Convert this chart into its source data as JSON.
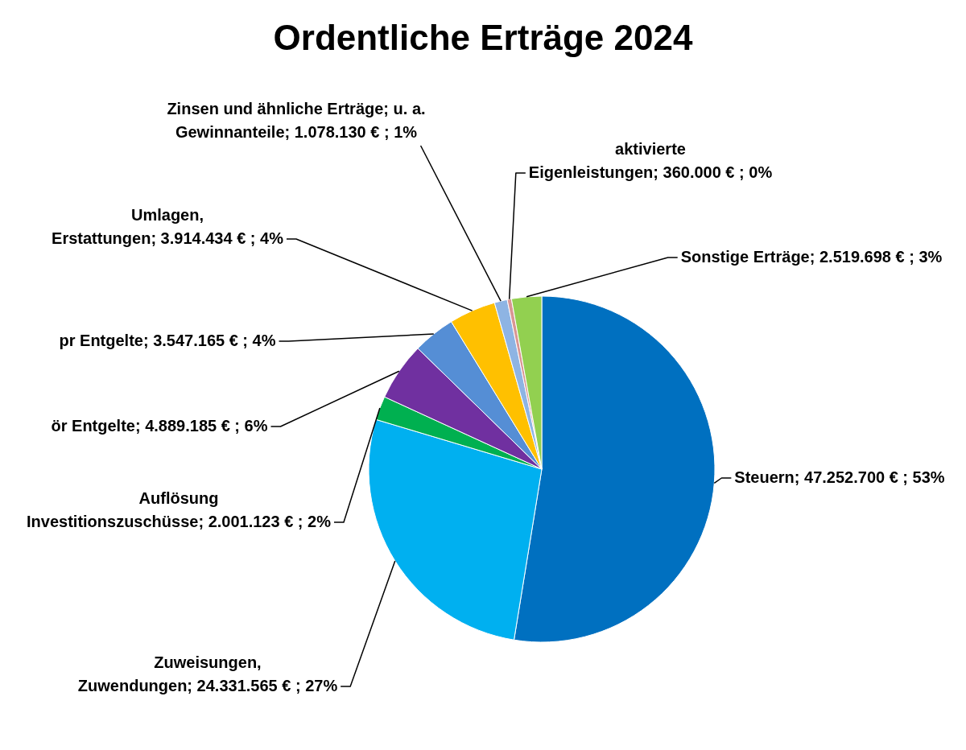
{
  "chart_data": {
    "type": "pie",
    "title": "Ordentliche Erträge 2024",
    "categories": [
      "Steuern",
      "Zuweisungen, Zuwendungen",
      "Auflösung Investitionszuschüsse",
      "ör Entgelte",
      "pr Entgelte",
      "Umlagen, Erstattungen",
      "Zinsen und ähnliche Erträge; u. a. Gewinnanteile",
      "aktivierte Eigenleistungen",
      "Sonstige Erträge"
    ],
    "values": [
      47252700,
      24331565,
      2001123,
      4889185,
      3547165,
      3914434,
      1078130,
      360000,
      2519698
    ],
    "colors": [
      "#0070c0",
      "#00b0f0",
      "#00b050",
      "#7030a0",
      "#558ed5",
      "#ffc000",
      "#8eb4e3",
      "#d99694",
      "#92d050"
    ],
    "value_labels": [
      "47.252.700 € ; 53%",
      "24.331.565 € ; 27%",
      "2.001.123 € ; 2%",
      "4.889.185 € ; 6%",
      "3.547.165 € ; 4%",
      "3.914.434 € ; 4%",
      "1.078.130 € ; 1%",
      "360.000 € ; 0%",
      "2.519.698 € ; 3%"
    ]
  }
}
